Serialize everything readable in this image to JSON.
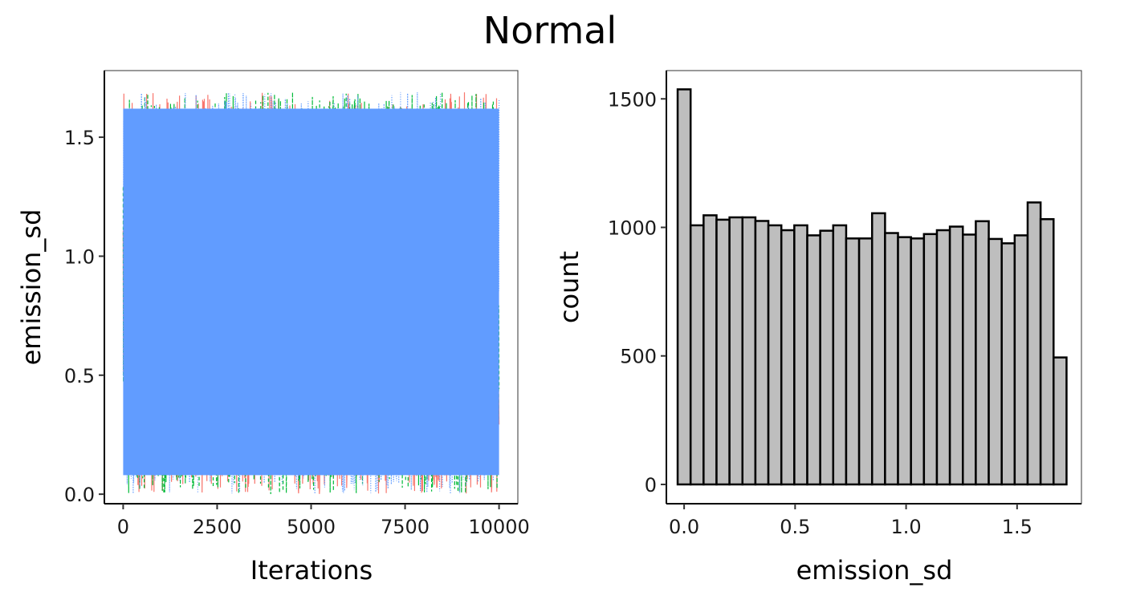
{
  "title": "Normal",
  "chart_data": [
    {
      "type": "line",
      "xlabel": "Iterations",
      "ylabel": "emission_sd",
      "xlim": [
        -500,
        10500
      ],
      "ylim": [
        -0.04,
        1.78
      ],
      "xticks": [
        "0",
        "2500",
        "5000",
        "7500",
        "10000"
      ],
      "xtick_values": [
        0,
        2500,
        5000,
        7500,
        10000
      ],
      "yticks": [
        "0.0",
        "0.5",
        "1.0",
        "1.5"
      ],
      "ytick_values": [
        0,
        0.5,
        1.0,
        1.5
      ],
      "n_iterations": 10000,
      "value_range": [
        0.0,
        1.69
      ],
      "series_colors": [
        "#F8766D",
        "#00BA38",
        "#619CFF"
      ],
      "grid": false
    },
    {
      "type": "bar",
      "subtype": "histogram",
      "xlabel": "emission_sd",
      "ylabel": "count",
      "xlim": [
        -0.08,
        1.79
      ],
      "ylim": [
        -75,
        1610
      ],
      "xticks": [
        "0.0",
        "0.5",
        "1.0",
        "1.5"
      ],
      "xtick_values": [
        0,
        0.5,
        1.0,
        1.5
      ],
      "yticks": [
        "0",
        "500",
        "1000",
        "1500"
      ],
      "ytick_values": [
        0,
        500,
        1000,
        1500
      ],
      "bin_center_first": 0.0,
      "binwidth": 0.0584,
      "values": [
        1537,
        1008,
        1047,
        1030,
        1039,
        1039,
        1025,
        1008,
        989,
        1008,
        969,
        987,
        1008,
        957,
        957,
        1055,
        978,
        962,
        957,
        974,
        989,
        1003,
        972,
        1024,
        955,
        938,
        969,
        1097,
        1032,
        494
      ],
      "fill": "#BEBEBE",
      "stroke": "#000000",
      "grid": false
    }
  ]
}
